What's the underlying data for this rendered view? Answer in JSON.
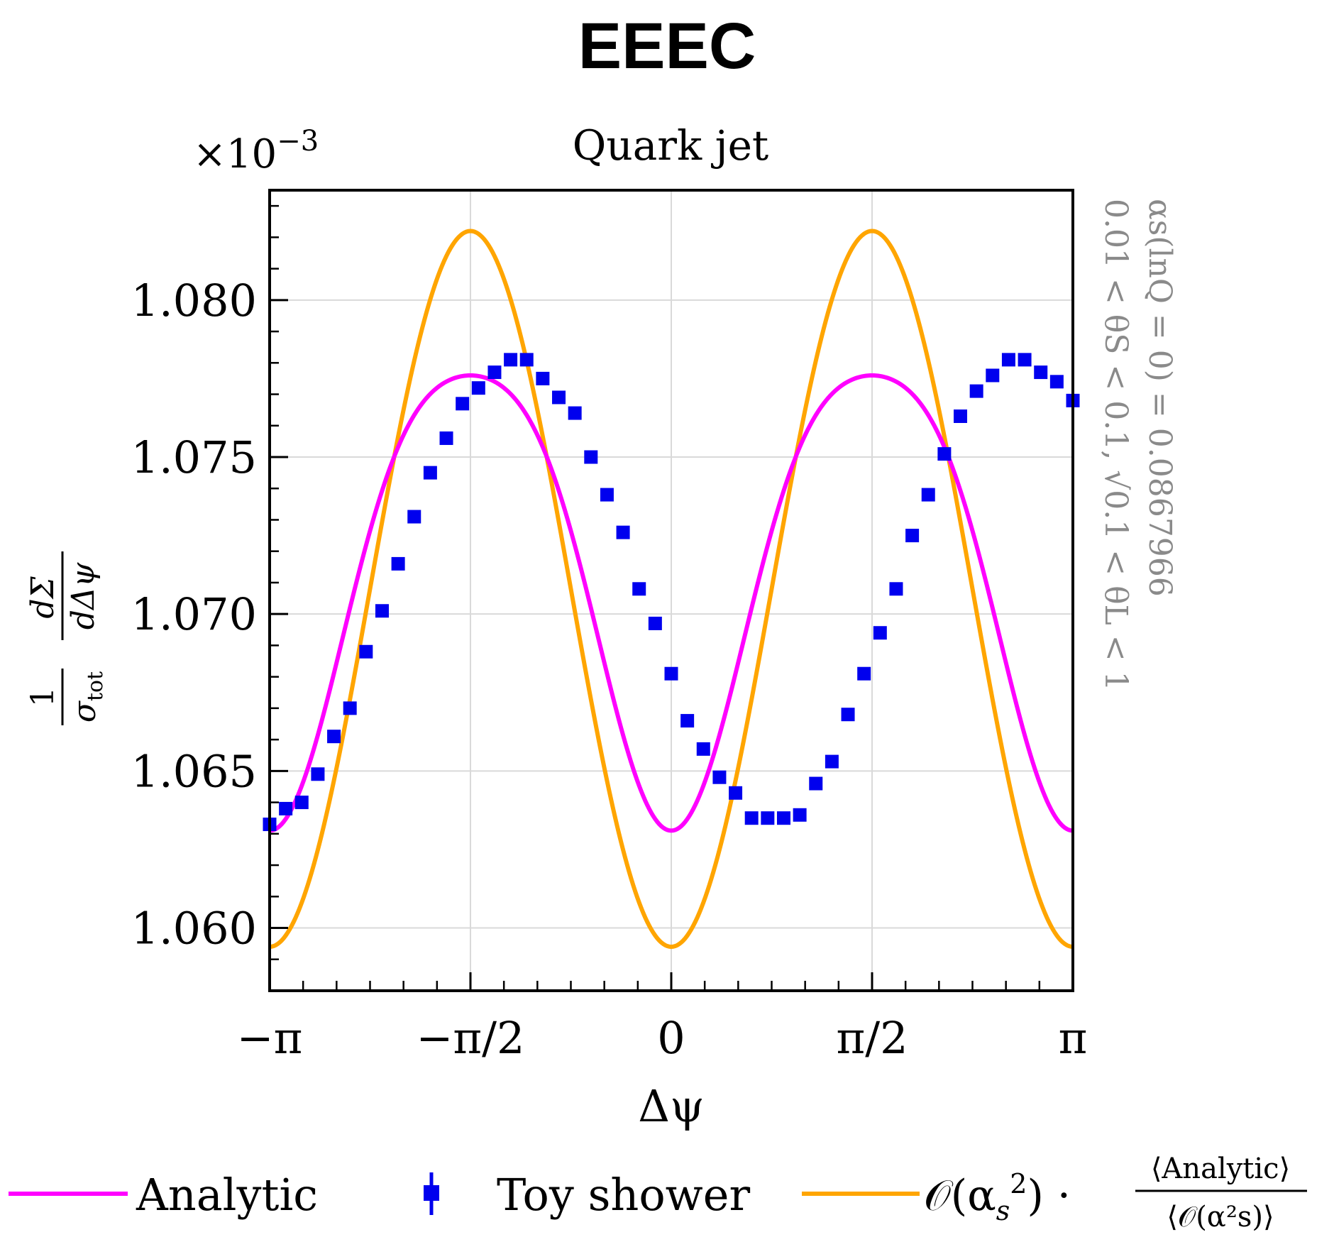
{
  "figure_title": "EEEC",
  "chart_data": {
    "type": "line",
    "title": "Quark jet",
    "xlabel": "Δψ",
    "ylabel": {
      "prefix_num": "1",
      "prefix_den": "σ",
      "prefix_den_sub": "tot",
      "frac_num": "dΣ",
      "frac_den": "dΔψ"
    },
    "y_multiplier": {
      "base": "×10",
      "exp": "−3"
    },
    "x_ticks": [
      {
        "value": -3.14159265,
        "label": "−π"
      },
      {
        "value": -1.57079633,
        "label": "−π/2"
      },
      {
        "value": 0,
        "label": "0"
      },
      {
        "value": 1.57079633,
        "label": "π/2"
      },
      {
        "value": 3.14159265,
        "label": "π"
      }
    ],
    "y_ticks": [
      {
        "value": 1.06,
        "label": "1.060"
      },
      {
        "value": 1.065,
        "label": "1.065"
      },
      {
        "value": 1.07,
        "label": "1.070"
      },
      {
        "value": 1.075,
        "label": "1.075"
      },
      {
        "value": 1.08,
        "label": "1.080"
      }
    ],
    "xlim": [
      -3.14159265,
      3.14159265
    ],
    "ylim": [
      1.058,
      1.0835
    ],
    "grid": true,
    "side_annotation": {
      "line1": "αs(lnQ = 0) = 0.0867966",
      "line2": "0.01 < θS < 0.1, √0.1 < θL < 1"
    },
    "series": [
      {
        "name": "Analytic",
        "style": "line",
        "color": "#ff00ff",
        "model": "a - b*cos(2x) - c*cos(4x)",
        "params": {
          "a": 1.0715,
          "b": 0.00725,
          "c": 0.00115
        }
      },
      {
        "name": "Toy shower",
        "style": "markers",
        "color": "#0000ee",
        "x": [
          -3.1416,
          -3.0159,
          -2.8903,
          -2.7646,
          -2.6389,
          -2.5133,
          -2.3876,
          -2.2619,
          -2.1363,
          -2.0106,
          -1.885,
          -1.7593,
          -1.6336,
          -1.508,
          -1.3823,
          -1.2566,
          -1.131,
          -1.0053,
          -0.8796,
          -0.754,
          -0.6283,
          -0.5027,
          -0.377,
          -0.2513,
          -0.1257,
          0.0,
          0.1257,
          0.2513,
          0.377,
          0.5027,
          0.6283,
          0.754,
          0.8796,
          1.0053,
          1.131,
          1.2566,
          1.3823,
          1.508,
          1.6336,
          1.7593,
          1.885,
          2.0106,
          2.1363,
          2.2619,
          2.3876,
          2.5133,
          2.6389,
          2.7646,
          2.8903,
          3.0159,
          3.1416
        ],
        "y": [
          1.0633,
          1.0638,
          1.064,
          1.0649,
          1.0661,
          1.067,
          1.0688,
          1.0701,
          1.0716,
          1.0731,
          1.0745,
          1.0756,
          1.0767,
          1.0772,
          1.0777,
          1.0781,
          1.0781,
          1.0775,
          1.0769,
          1.0764,
          1.075,
          1.0738,
          1.0726,
          1.0708,
          1.0697,
          1.0681,
          1.0666,
          1.0657,
          1.0648,
          1.0643,
          1.0635,
          1.0635,
          1.0635,
          1.0636,
          1.0646,
          1.0653,
          1.0668,
          1.0681,
          1.0694,
          1.0708,
          1.0725,
          1.0738,
          1.0751,
          1.0763,
          1.0771,
          1.0776,
          1.0781,
          1.0781,
          1.0777,
          1.0774,
          1.0768
        ]
      },
      {
        "name": "O(αs²) · ⟨Analytic⟩/⟨O(αs²)⟩",
        "style": "line",
        "color": "#ffa500",
        "model": "a - b*cos(2x)",
        "params": {
          "a": 1.0708,
          "b": 0.0114
        }
      }
    ]
  },
  "legend": {
    "analytic": "Analytic",
    "toy": "Toy shower",
    "orange_prefix": "𝒪(α",
    "orange_sub": "s",
    "orange_sup": "2",
    "orange_mid": ") ·",
    "orange_frac_num": "⟨Analytic⟩",
    "orange_frac_den": "⟨𝒪(α²s)⟩"
  }
}
